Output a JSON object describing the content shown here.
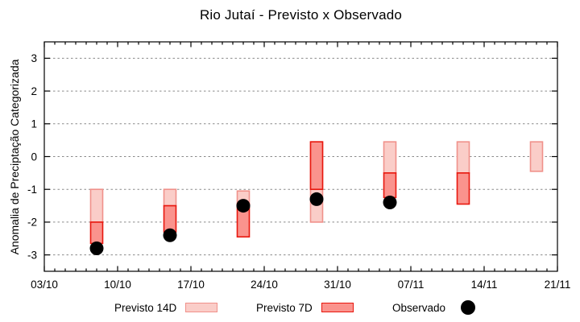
{
  "chart_data": {
    "type": "bar",
    "subtype": "floating-range-bars-with-scatter-overlay",
    "title": "Rio Jutaí - Previsto x Observado",
    "ylabel": "Anomalia de Preciptação Categorizada",
    "xlabel": "",
    "ylim": [
      -3.5,
      3.5
    ],
    "yticks": [
      3,
      2,
      1,
      0,
      -1,
      -2,
      -3
    ],
    "grid": "horizontal dotted gridlines at each y tick",
    "x_axis": {
      "start_date": "03/10",
      "end_date": "21/11",
      "total_days": 49,
      "minor_tick_every_days": 1,
      "major_ticks": [
        {
          "label": "03/10",
          "day": 0
        },
        {
          "label": "10/10",
          "day": 7
        },
        {
          "label": "17/10",
          "day": 14
        },
        {
          "label": "24/10",
          "day": 21
        },
        {
          "label": "31/10",
          "day": 28
        },
        {
          "label": "07/11",
          "day": 35
        },
        {
          "label": "14/11",
          "day": 42
        },
        {
          "label": "21/11",
          "day": 49
        }
      ]
    },
    "colors": {
      "p14_fill": "#FACDC8",
      "p14_stroke": "#F0918A",
      "p7_fill": "#FA938D",
      "p7_stroke": "#E8170E",
      "observed": "#000000",
      "grid": "#8a8a8a",
      "axis": "#000000"
    },
    "legend_position": "bottom, outside plot",
    "legend": [
      {
        "label": "Previsto 14D",
        "swatch": "light-pink-box"
      },
      {
        "label": "Previsto 7D",
        "swatch": "red-box"
      },
      {
        "label": "Observado",
        "swatch": "black-dot"
      }
    ],
    "series": [
      {
        "name": "Previsto 14D",
        "kind": "range-bar",
        "points": [
          {
            "date": "08/10",
            "day": 5,
            "lo": -2.0,
            "hi": -1.0
          },
          {
            "date": "15/10",
            "day": 12,
            "lo": -1.5,
            "hi": -1.0
          },
          {
            "date": "22/10",
            "day": 19,
            "lo": -1.45,
            "hi": -1.05
          },
          {
            "date": "29/10",
            "day": 26,
            "lo": -2.0,
            "hi": 0.45
          },
          {
            "date": "05/11",
            "day": 33,
            "lo": -0.5,
            "hi": 0.45
          },
          {
            "date": "12/11",
            "day": 40,
            "lo": -0.5,
            "hi": 0.45
          },
          {
            "date": "19/11",
            "day": 47,
            "lo": -0.45,
            "hi": 0.45
          }
        ]
      },
      {
        "name": "Previsto 7D",
        "kind": "range-bar",
        "points": [
          {
            "date": "08/10",
            "day": 5,
            "lo": -2.65,
            "hi": -2.0
          },
          {
            "date": "15/10",
            "day": 12,
            "lo": -2.3,
            "hi": -1.5
          },
          {
            "date": "22/10",
            "day": 19,
            "lo": -2.45,
            "hi": -1.45
          },
          {
            "date": "29/10",
            "day": 26,
            "lo": -1.0,
            "hi": 0.45
          },
          {
            "date": "05/11",
            "day": 33,
            "lo": -1.25,
            "hi": -0.5
          },
          {
            "date": "12/11",
            "day": 40,
            "lo": -1.45,
            "hi": -0.5
          }
        ]
      },
      {
        "name": "Observado",
        "kind": "scatter",
        "points": [
          {
            "date": "08/10",
            "day": 5,
            "value": -2.8
          },
          {
            "date": "15/10",
            "day": 12,
            "value": -2.4
          },
          {
            "date": "22/10",
            "day": 19,
            "value": -1.5
          },
          {
            "date": "29/10",
            "day": 26,
            "value": -1.3
          },
          {
            "date": "05/11",
            "day": 33,
            "value": -1.4
          }
        ]
      }
    ]
  }
}
